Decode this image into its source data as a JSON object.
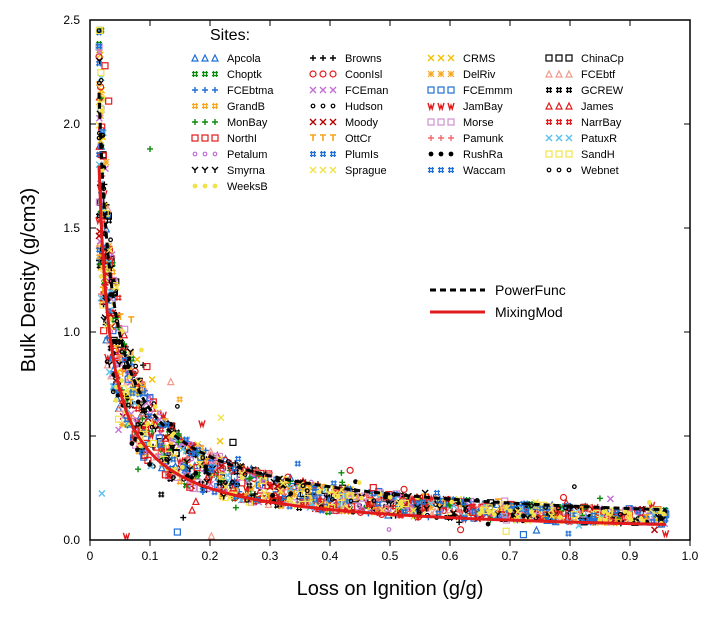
{
  "type": "scatter+curve",
  "xlabel": "Loss on Ignition (g/g)",
  "ylabel": "Bulk Density (g/cm3)",
  "label_fontsize": 20,
  "xlim": [
    0,
    1.0
  ],
  "ylim": [
    0,
    2.5
  ],
  "xtick_step": 0.1,
  "ytick_step": 0.5,
  "tick_fontsize": 12,
  "background_color": "#ffffff",
  "axis_color": "#000000",
  "marker_size": 6,
  "legend_title": "Sites:",
  "legend_title_fontsize": 16,
  "legend_fontsize": 11,
  "legend_cols": 4,
  "curve_legend": [
    {
      "label": "PowerFunc",
      "color": "#000000",
      "dash": "6,4",
      "width": 3
    },
    {
      "label": "MixingMod",
      "color": "#e11b1b",
      "dash": null,
      "width": 3
    }
  ],
  "power_curve_y0": 2.15,
  "power_curve_y1": 0.145,
  "mixing_curve_y0": 1.8,
  "mixing_curve_y1": 0.075,
  "scatter_xmin": 0.015,
  "scatter_xmax": 0.96,
  "scatter_n_per_site": 55,
  "scatter_noise": 0.32,
  "sites": [
    {
      "name": "Apcola",
      "color": "#1f6fd4",
      "marker": "triangle"
    },
    {
      "name": "Browns",
      "color": "#000000",
      "marker": "plus"
    },
    {
      "name": "CRMS",
      "color": "#f2c200",
      "marker": "xmark"
    },
    {
      "name": "ChinaCp",
      "color": "#000000",
      "marker": "square"
    },
    {
      "name": "Choptk",
      "color": "#0a8a0a",
      "marker": "hash"
    },
    {
      "name": "CoonIsl",
      "color": "#e11b1b",
      "marker": "circle"
    },
    {
      "name": "DelRiv",
      "color": "#f7a51a",
      "marker": "asterisk"
    },
    {
      "name": "FCEbtf",
      "color": "#f09a8a",
      "marker": "triangle"
    },
    {
      "name": "FCEbtma",
      "color": "#1f6fd4",
      "marker": "plus"
    },
    {
      "name": "FCEman",
      "color": "#c36fd4",
      "marker": "xmark"
    },
    {
      "name": "FCEmmm",
      "color": "#1f6fd4",
      "marker": "square"
    },
    {
      "name": "GCREW",
      "color": "#000000",
      "marker": "hash"
    },
    {
      "name": "GrandB",
      "color": "#f7a51a",
      "marker": "hash"
    },
    {
      "name": "Hudson",
      "color": "#000000",
      "marker": "circle_small"
    },
    {
      "name": "JamBay",
      "color": "#e11b1b",
      "marker": "wmark"
    },
    {
      "name": "James",
      "color": "#e11b1b",
      "marker": "triangle"
    },
    {
      "name": "MonBay",
      "color": "#0a8a0a",
      "marker": "plus"
    },
    {
      "name": "Moody",
      "color": "#b30000",
      "marker": "xmark"
    },
    {
      "name": "Morse",
      "color": "#cf8fcf",
      "marker": "square"
    },
    {
      "name": "NarrBay",
      "color": "#e11b1b",
      "marker": "hash"
    },
    {
      "name": "NorthI",
      "color": "#e11b1b",
      "marker": "square"
    },
    {
      "name": "OttCr",
      "color": "#f7a51a",
      "marker": "tbar"
    },
    {
      "name": "Pamunk",
      "color": "#f06b6b",
      "marker": "plus"
    },
    {
      "name": "PatuxR",
      "color": "#5bc0eb",
      "marker": "xmark"
    },
    {
      "name": "Petalum",
      "color": "#c36fd4",
      "marker": "circle_small"
    },
    {
      "name": "PlumIs",
      "color": "#1f6fd4",
      "marker": "hash"
    },
    {
      "name": "RushRa",
      "color": "#000000",
      "marker": "circle_filled"
    },
    {
      "name": "SandH",
      "color": "#f2e24a",
      "marker": "square"
    },
    {
      "name": "Smyrna",
      "color": "#000000",
      "marker": "ymark"
    },
    {
      "name": "Sprague",
      "color": "#f2e24a",
      "marker": "xmark"
    },
    {
      "name": "Waccam",
      "color": "#1f6fd4",
      "marker": "hash"
    },
    {
      "name": "Webnet",
      "color": "#000000",
      "marker": "circle_small"
    },
    {
      "name": "WeeksB",
      "color": "#f2e24a",
      "marker": "circle_filled"
    }
  ]
}
